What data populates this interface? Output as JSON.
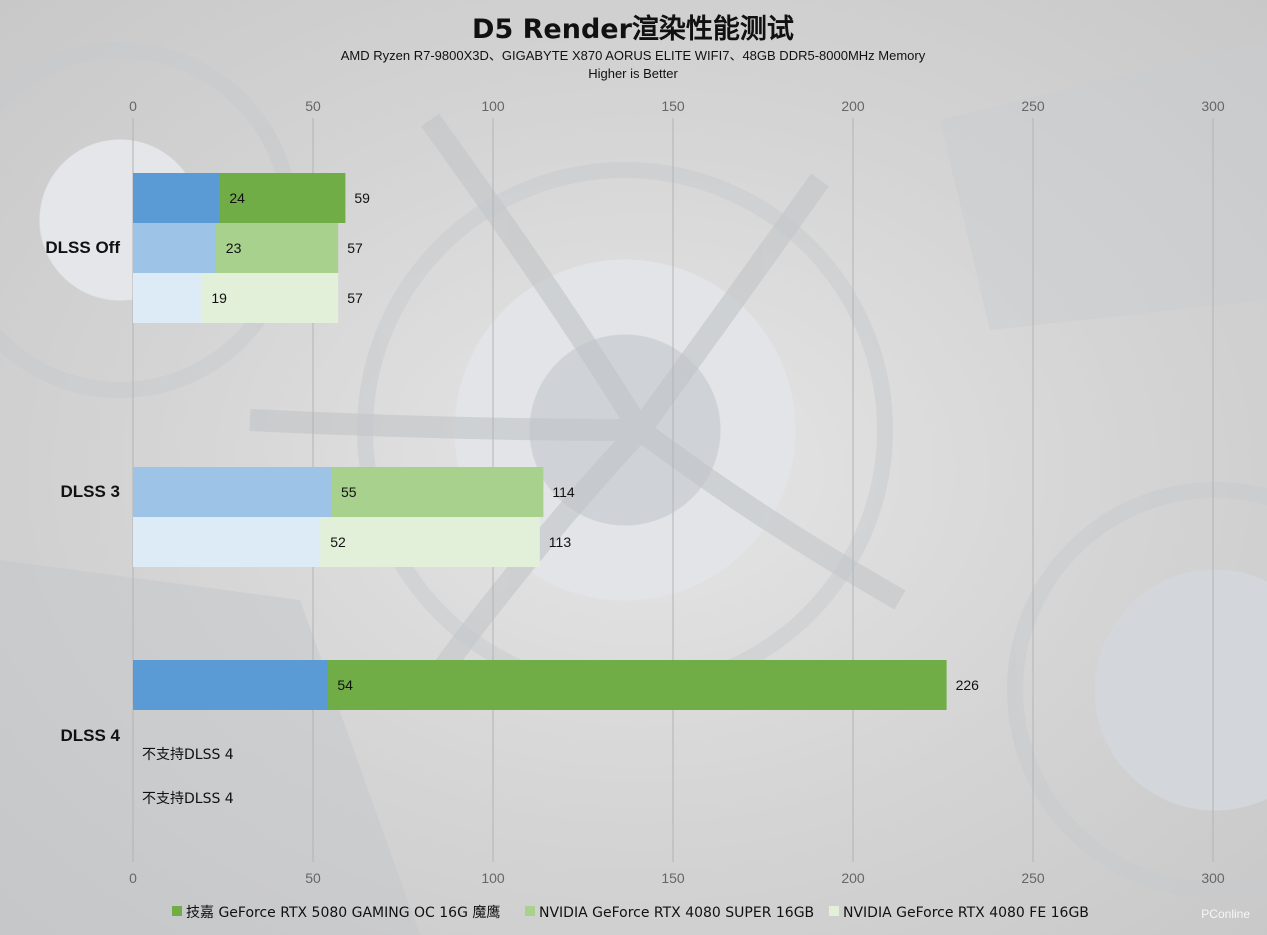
{
  "chart_data": {
    "type": "bar",
    "title": "D5 Render渲染性能测试",
    "subtitle_lines": [
      "AMD Ryzen R7-9800X3D、GIGABYTE X870 AORUS ELITE WIFI7、48GB DDR5-8000MHz Memory",
      "Higher is Better"
    ],
    "categories": [
      "DLSS Off",
      "DLSS 3",
      "DLSS 4"
    ],
    "xlim": [
      0,
      300
    ],
    "x_ticks": [
      0,
      50,
      100,
      150,
      200,
      250,
      300
    ],
    "grid": true,
    "legend_position": "bottom",
    "series": [
      {
        "name": "技嘉 GeForce RTX 5080 GAMING OC 16G 魔鹰",
        "color": "#70ad47",
        "inner_color": "#5b9bd5",
        "values": [
          59,
          null,
          226
        ],
        "inner_values": [
          24,
          null,
          54
        ]
      },
      {
        "name": "NVIDIA GeForce RTX 4080 SUPER 16GB",
        "color": "#a9d18e",
        "inner_color": "#9dc3e6",
        "values": [
          57,
          114,
          null
        ],
        "inner_values": [
          23,
          55,
          null
        ]
      },
      {
        "name": "NVIDIA GeForce RTX 4080 FE 16GB",
        "color": "#e2f0d9",
        "inner_color": "#ddebf7",
        "values": [
          57,
          113,
          null
        ],
        "inner_values": [
          19,
          52,
          null
        ]
      }
    ],
    "annotations": [
      "不支持DLSS 4",
      "不支持DLSS 4"
    ]
  },
  "watermark": "PConline"
}
